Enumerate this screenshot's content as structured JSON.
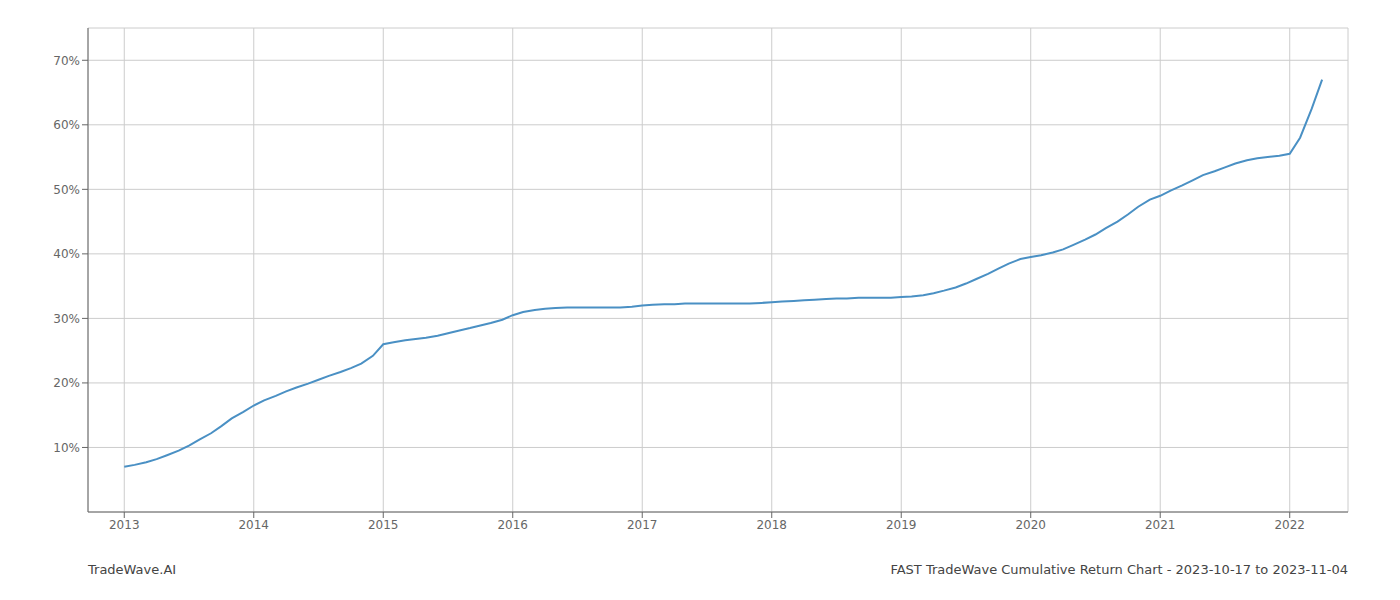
{
  "chart_data": {
    "type": "line",
    "annotations": [
      "TradeWave.AI",
      "FAST TradeWave Cumulative Return Chart - 2023-10-17 to 2023-11-04"
    ],
    "color": "#4a90c4",
    "grid": true,
    "x": [
      2013.0,
      2013.08,
      2013.17,
      2013.25,
      2013.33,
      2013.42,
      2013.5,
      2013.58,
      2013.67,
      2013.75,
      2013.83,
      2013.92,
      2014.0,
      2014.08,
      2014.17,
      2014.25,
      2014.33,
      2014.42,
      2014.5,
      2014.58,
      2014.67,
      2014.75,
      2014.83,
      2014.92,
      2015.0,
      2015.08,
      2015.17,
      2015.25,
      2015.33,
      2015.42,
      2015.5,
      2015.58,
      2015.67,
      2015.75,
      2015.83,
      2015.92,
      2016.0,
      2016.08,
      2016.17,
      2016.25,
      2016.33,
      2016.42,
      2016.5,
      2016.58,
      2016.67,
      2016.75,
      2016.83,
      2016.92,
      2017.0,
      2017.08,
      2017.17,
      2017.25,
      2017.33,
      2017.42,
      2017.5,
      2017.58,
      2017.67,
      2017.75,
      2017.83,
      2017.92,
      2018.0,
      2018.08,
      2018.17,
      2018.25,
      2018.33,
      2018.42,
      2018.5,
      2018.58,
      2018.67,
      2018.75,
      2018.83,
      2018.92,
      2019.0,
      2019.08,
      2019.17,
      2019.25,
      2019.33,
      2019.42,
      2019.5,
      2019.58,
      2019.67,
      2019.75,
      2019.83,
      2019.92,
      2020.0,
      2020.08,
      2020.17,
      2020.25,
      2020.33,
      2020.42,
      2020.5,
      2020.58,
      2020.67,
      2020.75,
      2020.83,
      2020.92,
      2021.0,
      2021.08,
      2021.17,
      2021.25,
      2021.33,
      2021.42,
      2021.5,
      2021.58,
      2021.67,
      2021.75,
      2021.83,
      2021.92,
      2022.0,
      2022.08,
      2022.17,
      2022.25
    ],
    "values": [
      7.0,
      7.3,
      7.7,
      8.2,
      8.8,
      9.5,
      10.3,
      11.2,
      12.2,
      13.3,
      14.5,
      15.5,
      16.5,
      17.3,
      18.0,
      18.7,
      19.3,
      19.9,
      20.5,
      21.1,
      21.7,
      22.3,
      23.0,
      24.2,
      26.0,
      26.3,
      26.6,
      26.8,
      27.0,
      27.3,
      27.7,
      28.1,
      28.5,
      28.9,
      29.3,
      29.8,
      30.5,
      31.0,
      31.3,
      31.5,
      31.6,
      31.7,
      31.7,
      31.7,
      31.7,
      31.7,
      31.7,
      31.8,
      32.0,
      32.1,
      32.2,
      32.2,
      32.3,
      32.3,
      32.3,
      32.3,
      32.3,
      32.3,
      32.3,
      32.4,
      32.5,
      32.6,
      32.7,
      32.8,
      32.9,
      33.0,
      33.1,
      33.1,
      33.2,
      33.2,
      33.2,
      33.2,
      33.3,
      33.4,
      33.6,
      33.9,
      34.3,
      34.8,
      35.4,
      36.1,
      36.9,
      37.7,
      38.5,
      39.2,
      39.5,
      39.8,
      40.2,
      40.7,
      41.4,
      42.2,
      43.0,
      44.0,
      45.0,
      46.1,
      47.3,
      48.4,
      49.0,
      49.8,
      50.6,
      51.4,
      52.2,
      52.8,
      53.4,
      54.0,
      54.5,
      54.8,
      55.0,
      55.2,
      55.5,
      58.0,
      62.5,
      67.0
    ],
    "xlim": [
      2012.72,
      2022.45
    ],
    "ylim": [
      0,
      75
    ],
    "xticks": [
      2013,
      2014,
      2015,
      2016,
      2017,
      2018,
      2019,
      2020,
      2021,
      2022
    ],
    "yticks": [
      {
        "value": 10,
        "label": "10%"
      },
      {
        "value": 20,
        "label": "20%"
      },
      {
        "value": 30,
        "label": "30%"
      },
      {
        "value": 40,
        "label": "40%"
      },
      {
        "value": 50,
        "label": "50%"
      },
      {
        "value": 60,
        "label": "60%"
      },
      {
        "value": 70,
        "label": "70%"
      }
    ]
  }
}
